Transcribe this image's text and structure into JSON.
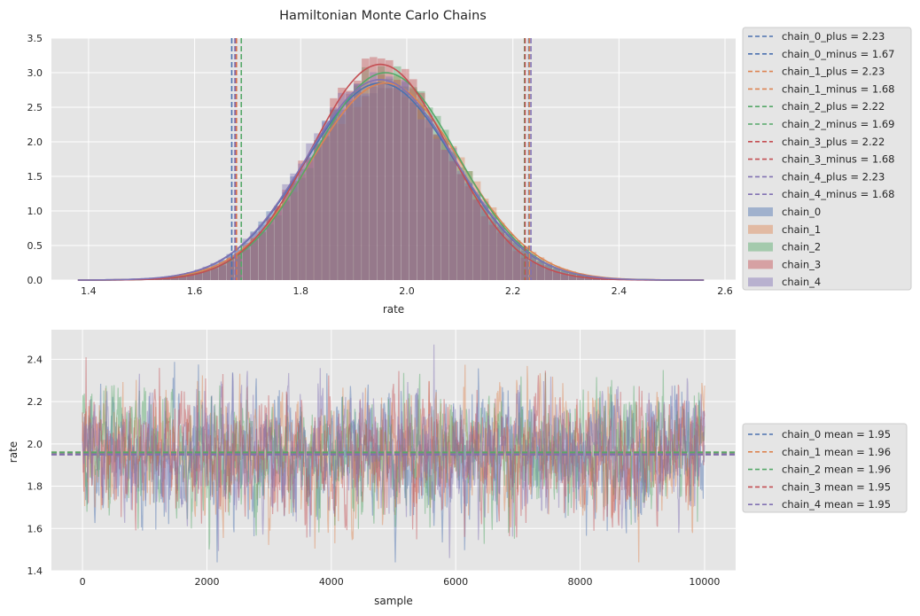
{
  "title": "Hamiltonian Monte Carlo Chains",
  "colors": {
    "chain_0": "#4c72b0",
    "chain_1": "#dd8452",
    "chain_2": "#55a868",
    "chain_3": "#c44e52",
    "chain_4": "#8172b3",
    "axes_bg": "#e5e5e5",
    "grid": "#d4d4d4"
  },
  "chart_data": [
    {
      "type": "histogram",
      "xlabel": "rate",
      "ylabel": "",
      "xlim": [
        1.33,
        2.62
      ],
      "ylim": [
        0,
        3.5
      ],
      "xticks": [
        1.4,
        1.6,
        1.8,
        2.0,
        2.2,
        2.4,
        2.6
      ],
      "yticks": [
        0.0,
        0.5,
        1.0,
        1.5,
        2.0,
        2.5,
        3.0,
        3.5
      ],
      "grid": true,
      "legend_position": "outside-right",
      "series": [
        {
          "name": "chain_0",
          "kde_mean": 1.95,
          "kde_sd": 0.14,
          "kde_peak": 2.85
        },
        {
          "name": "chain_1",
          "kde_mean": 1.96,
          "kde_sd": 0.14,
          "kde_peak": 2.85
        },
        {
          "name": "chain_2",
          "kde_mean": 1.96,
          "kde_sd": 0.135,
          "kde_peak": 3.0
        },
        {
          "name": "chain_3",
          "kde_mean": 1.95,
          "kde_sd": 0.13,
          "kde_peak": 3.12
        },
        {
          "name": "chain_4",
          "kde_mean": 1.95,
          "kde_sd": 0.14,
          "kde_peak": 2.9
        }
      ],
      "vlines": [
        {
          "label": "chain_0_plus =  2.23",
          "x": 2.23,
          "chain": "chain_0"
        },
        {
          "label": "chain_0_minus =  1.67",
          "x": 1.67,
          "chain": "chain_0"
        },
        {
          "label": "chain_1_plus =  2.23",
          "x": 2.23,
          "chain": "chain_1"
        },
        {
          "label": "chain_1_minus =  1.68",
          "x": 1.68,
          "chain": "chain_1"
        },
        {
          "label": "chain_2_plus =  2.22",
          "x": 2.22,
          "chain": "chain_2"
        },
        {
          "label": "chain_2_minus =  1.69",
          "x": 1.69,
          "chain": "chain_2"
        },
        {
          "label": "chain_3_plus =  2.22",
          "x": 2.22,
          "chain": "chain_3"
        },
        {
          "label": "chain_3_minus =  1.68",
          "x": 1.68,
          "chain": "chain_3"
        },
        {
          "label": "chain_4_plus =  2.23",
          "x": 2.23,
          "chain": "chain_4"
        },
        {
          "label": "chain_4_minus =  1.68",
          "x": 1.68,
          "chain": "chain_4"
        }
      ],
      "hist_legend": [
        "chain_0",
        "chain_1",
        "chain_2",
        "chain_3",
        "chain_4"
      ]
    },
    {
      "type": "line",
      "xlabel": "sample",
      "ylabel": "rate",
      "xlim": [
        -500,
        10500
      ],
      "ylim": [
        1.4,
        2.54
      ],
      "xticks": [
        0,
        2000,
        4000,
        6000,
        8000,
        10000
      ],
      "yticks": [
        1.4,
        1.6,
        1.8,
        2.0,
        2.2,
        2.4
      ],
      "grid": true,
      "legend_position": "outside-right",
      "n_samples": 10000,
      "series": [
        {
          "name": "chain_0",
          "mean": 1.95,
          "sd": 0.14
        },
        {
          "name": "chain_1",
          "mean": 1.96,
          "sd": 0.14
        },
        {
          "name": "chain_2",
          "mean": 1.96,
          "sd": 0.14
        },
        {
          "name": "chain_3",
          "mean": 1.95,
          "sd": 0.14
        },
        {
          "name": "chain_4",
          "mean": 1.95,
          "sd": 0.14
        }
      ],
      "hlines": [
        {
          "label": "chain_0 mean =  1.95",
          "y": 1.95,
          "chain": "chain_0"
        },
        {
          "label": "chain_1 mean =  1.96",
          "y": 1.96,
          "chain": "chain_1"
        },
        {
          "label": "chain_2 mean =  1.96",
          "y": 1.96,
          "chain": "chain_2"
        },
        {
          "label": "chain_3 mean =  1.95",
          "y": 1.95,
          "chain": "chain_3"
        },
        {
          "label": "chain_4 mean =  1.95",
          "y": 1.95,
          "chain": "chain_4"
        }
      ]
    }
  ]
}
